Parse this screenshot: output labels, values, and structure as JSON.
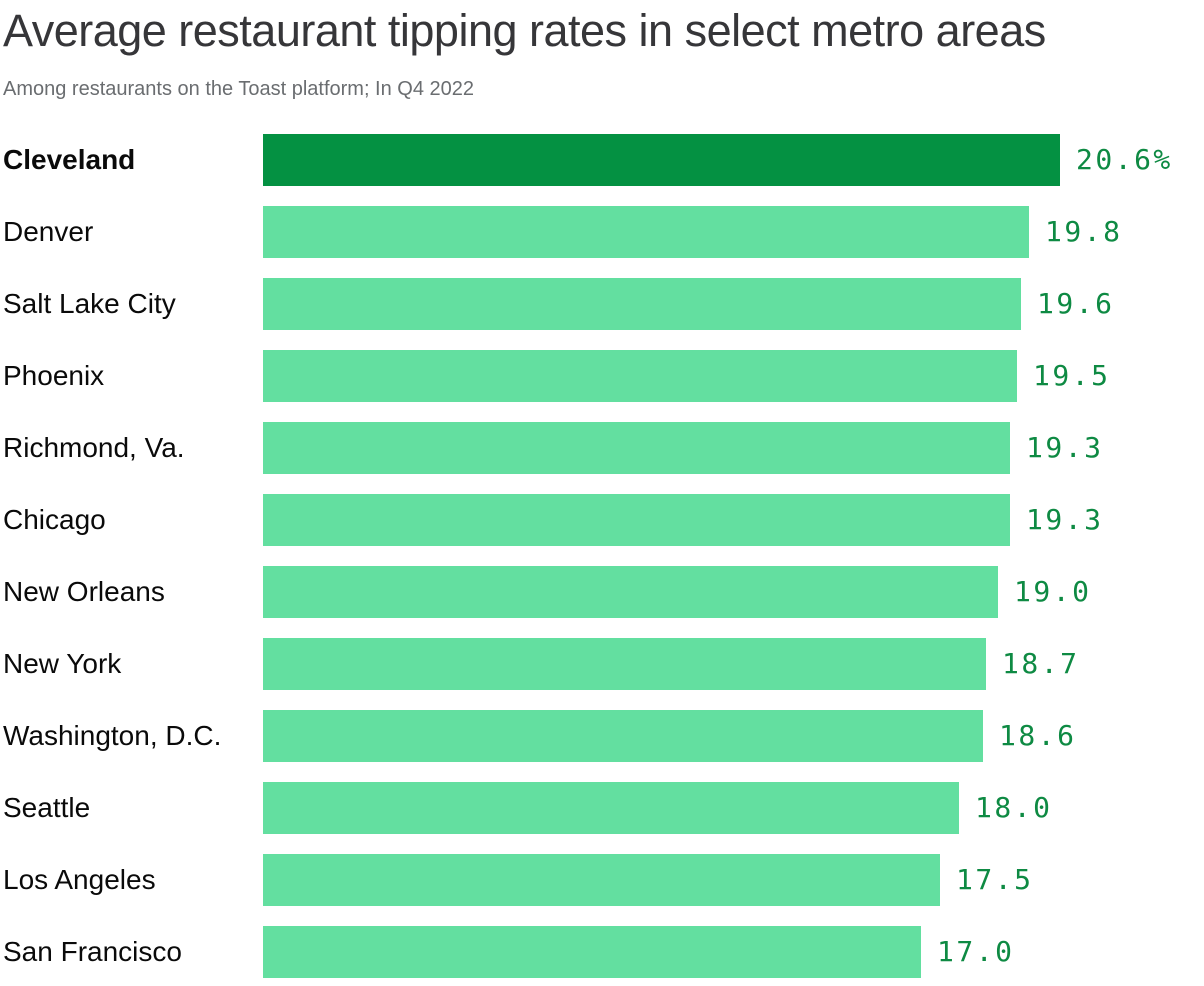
{
  "header": {
    "title": "Average restaurant tipping rates in select metro areas",
    "subtitle": "Among restaurants on the Toast platform; In Q4 2022"
  },
  "colors": {
    "bar_default": "#63dfa0",
    "bar_highlight": "#049142",
    "value_text": "#0e8a43",
    "title_text": "#363639",
    "subtitle_text": "#6a6d70",
    "label_text": "#0a0a0a"
  },
  "chart_data": {
    "type": "bar",
    "orientation": "horizontal",
    "title": "Average restaurant tipping rates in select metro areas",
    "subtitle": "Among restaurants on the Toast platform; In Q4 2022",
    "unit": "%",
    "xlim": [
      0,
      20.6
    ],
    "grid": false,
    "legend": false,
    "highlight_index": 0,
    "categories": [
      "Cleveland",
      "Denver",
      "Salt Lake City",
      "Phoenix",
      "Richmond, Va.",
      "Chicago",
      "New Orleans",
      "New York",
      "Washington, D.C.",
      "Seattle",
      "Los Angeles",
      "San Francisco"
    ],
    "values": [
      20.6,
      19.8,
      19.6,
      19.5,
      19.3,
      19.3,
      19.0,
      18.7,
      18.6,
      18.0,
      17.5,
      17.0
    ],
    "value_labels": [
      "20.6%",
      "19.8",
      "19.6",
      "19.5",
      "19.3",
      "19.3",
      "19.0",
      "18.7",
      "18.6",
      "18.0",
      "17.5",
      "17.0"
    ]
  }
}
